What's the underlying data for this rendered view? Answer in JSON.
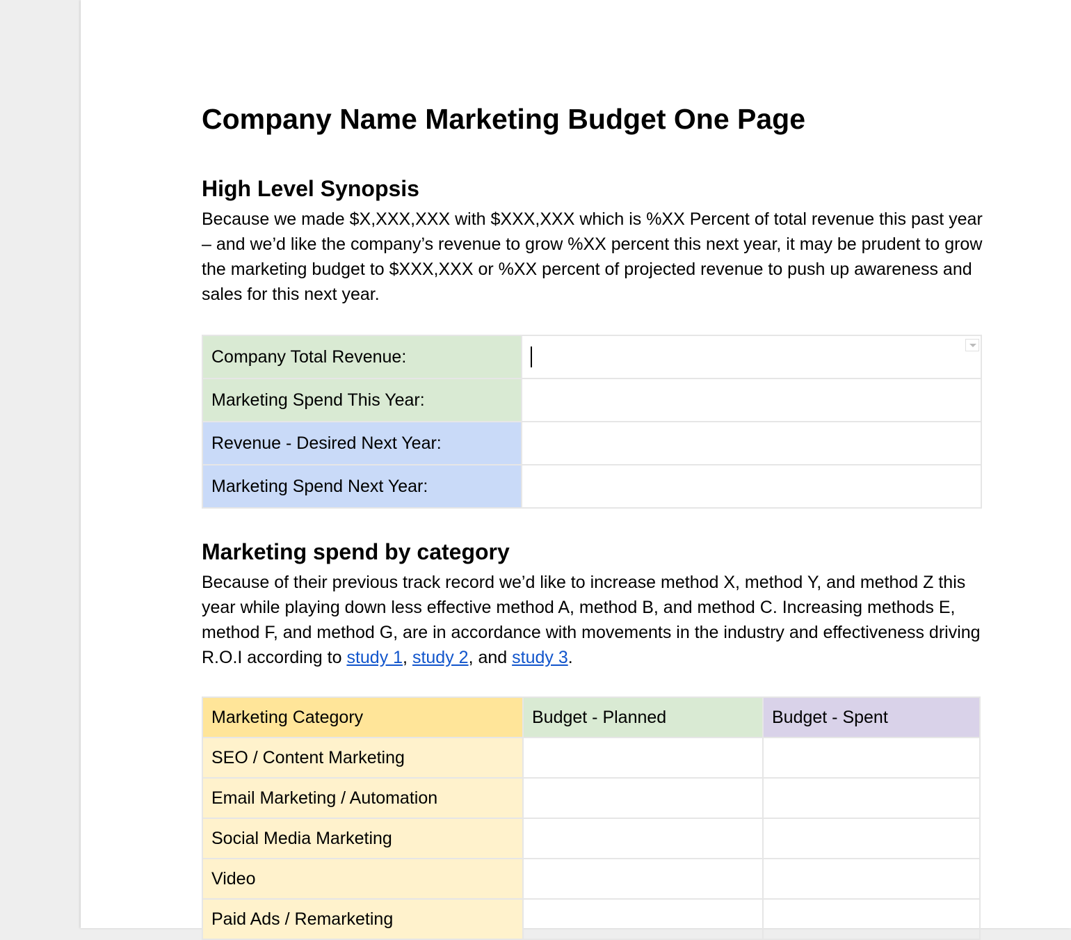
{
  "title": "Company Name Marketing Budget One Page",
  "synopsis": {
    "heading": "High Level Synopsis",
    "text": "Because we made $X,XXX,XXX with $XXX,XXX which is %XX Percent of total revenue this past year – and we’d like the company’s revenue to grow %XX percent this next year, it may be prudent to grow the marketing budget to $XXX,XXX or %XX percent of projected revenue to push up awareness and sales for this next year."
  },
  "summary_table": {
    "rows": [
      {
        "label": "Company Total Revenue:",
        "value": "",
        "color": "#d9ead3"
      },
      {
        "label": "Marketing Spend This Year:",
        "value": "",
        "color": "#d9ead3"
      },
      {
        "label": "Revenue - Desired Next Year:",
        "value": "",
        "color": "#c9daf8"
      },
      {
        "label": "Marketing Spend Next Year:",
        "value": "",
        "color": "#c9daf8"
      }
    ]
  },
  "category": {
    "heading": "Marketing spend by category",
    "text_before": "Because of their previous track record we’d like to increase method X, method Y, and method Z this year while playing down less effective method A, method B, and method C. Increasing methods E, method F, and method G, are in accordance with movements in the industry and effectiveness driving R.O.I according to ",
    "link1": "study 1",
    "sep1": ", ",
    "link2": "study 2",
    "sep2": ", and ",
    "link3": "study 3",
    "end": "."
  },
  "category_table": {
    "headers": [
      "Marketing Category",
      "Budget - Planned",
      "Budget - Spent"
    ],
    "rows": [
      [
        "SEO / Content Marketing",
        "",
        ""
      ],
      [
        "Email Marketing / Automation",
        "",
        ""
      ],
      [
        "Social Media Marketing",
        "",
        ""
      ],
      [
        "Video",
        "",
        ""
      ],
      [
        "Paid Ads / Remarketing",
        "",
        ""
      ]
    ]
  },
  "colors": {
    "link": "#1155cc",
    "header_yellow": "#ffe599",
    "row_yellow": "#fff2cc",
    "green": "#d9ead3",
    "blue": "#c9daf8",
    "purple": "#d9d2e9"
  }
}
